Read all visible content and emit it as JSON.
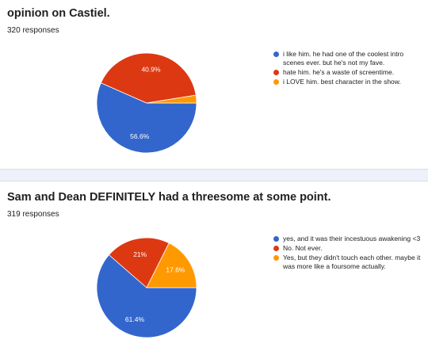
{
  "colors": {
    "blue": "#3366cc",
    "red": "#dc3912",
    "orange": "#ff9900"
  },
  "chart_data": [
    {
      "type": "pie",
      "title": "opinion on Castiel.",
      "responses": "320 responses",
      "categories": [
        "i like him. he had one of the coolest intro scenes ever. but he's not my fave.",
        "hate him. he's a waste of screentime.",
        "i LOVE him. best character in the show."
      ],
      "values": [
        56.6,
        40.9,
        2.5
      ],
      "labels": [
        "56.6%",
        "40.9%",
        ""
      ],
      "colors": [
        "#3366cc",
        "#dc3912",
        "#ff9900"
      ],
      "legend": "right"
    },
    {
      "type": "pie",
      "title": "Sam and Dean DEFINITELY had a threesome at some point.",
      "responses": "319 responses",
      "categories": [
        "yes, and it was their incestuous awakening <3",
        "No. Not ever.",
        "Yes, but they didn't touch each other. maybe it was more like a foursome actually."
      ],
      "values": [
        61.4,
        21,
        17.6
      ],
      "labels": [
        "61.4%",
        "21%",
        "17.6%"
      ],
      "colors": [
        "#3366cc",
        "#dc3912",
        "#ff9900"
      ],
      "legend": "right"
    }
  ]
}
